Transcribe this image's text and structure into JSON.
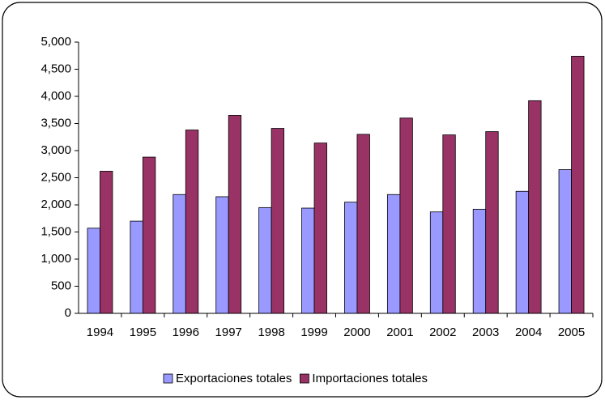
{
  "chart_data": {
    "type": "bar",
    "categories": [
      "1994",
      "1995",
      "1996",
      "1997",
      "1998",
      "1999",
      "2000",
      "2001",
      "2002",
      "2003",
      "2004",
      "2005"
    ],
    "series": [
      {
        "name": "Exportaciones totales",
        "color": "#9999ff",
        "values": [
          1570,
          1700,
          2190,
          2150,
          1950,
          1940,
          2050,
          2190,
          1870,
          1920,
          2250,
          2650
        ]
      },
      {
        "name": "Importaciones totales",
        "color": "#993366",
        "values": [
          2620,
          2880,
          3380,
          3650,
          3410,
          3140,
          3300,
          3600,
          3290,
          3350,
          3920,
          4740
        ]
      }
    ],
    "ylim": [
      0,
      5000
    ],
    "yticks": [
      0,
      500,
      {
        "value": 1000,
        "label": "1,000"
      },
      {
        "value": 1500,
        "label": "1,500"
      },
      {
        "value": 2000,
        "label": "2,000"
      },
      {
        "value": 2500,
        "label": "2,500"
      },
      {
        "value": 3000,
        "label": "3,000"
      },
      {
        "value": 3500,
        "label": "3,500"
      },
      {
        "value": 4000,
        "label": "4,000"
      },
      {
        "value": 4500,
        "label": "4,500"
      },
      {
        "value": 5000,
        "label": "5,000"
      }
    ],
    "legend": "bottom"
  }
}
